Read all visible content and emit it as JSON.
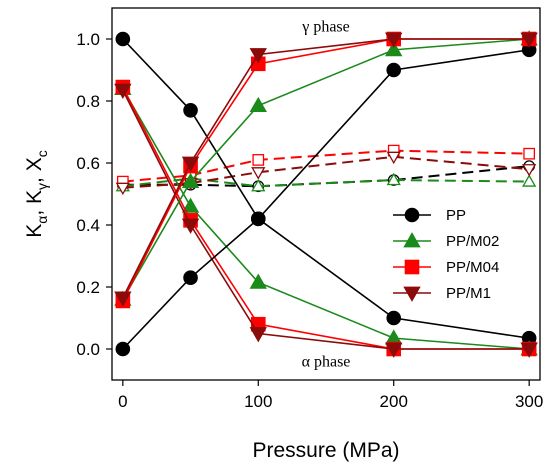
{
  "chart_data": {
    "type": "line",
    "xlabel": "Pressure (MPa)",
    "ylabel": {
      "base": "K",
      "parts": [
        {
          "main": "K",
          "sub": "α"
        },
        {
          "main": "K",
          "sub": "γ"
        },
        {
          "main": "X",
          "sub": "c"
        }
      ],
      "text": "Kα, Kγ, Xc"
    },
    "xlim": [
      -8,
      308
    ],
    "ylim": [
      -0.1,
      1.1
    ],
    "xticks": [
      0,
      100,
      200,
      300
    ],
    "yticks": [
      0.0,
      0.2,
      0.4,
      0.6,
      0.8,
      1.0
    ],
    "xtick_labels": [
      "0",
      "100",
      "200",
      "300"
    ],
    "ytick_labels": [
      "0.0",
      "0.2",
      "0.4",
      "0.6",
      "0.8",
      "1.0"
    ],
    "grid": false,
    "legend_position": "right",
    "annotations": [
      {
        "text": "γ phase",
        "x": 150,
        "y": 1.04
      },
      {
        "text": "α phase",
        "x": 150,
        "y": -0.04
      }
    ],
    "x": [
      0,
      50,
      100,
      200,
      300
    ],
    "series": [
      {
        "name": "PP",
        "color": "#000000",
        "marker": "circle",
        "group": "gamma",
        "dashed": false,
        "filled": true,
        "in_legend": true,
        "values": [
          0.0,
          0.23,
          0.42,
          0.9,
          0.965
        ]
      },
      {
        "name": "PP",
        "color": "#000000",
        "marker": "circle",
        "group": "alpha",
        "dashed": false,
        "filled": true,
        "in_legend": false,
        "values": [
          1.0,
          0.77,
          0.42,
          0.1,
          0.035
        ]
      },
      {
        "name": "PP",
        "color": "#000000",
        "marker": "circle",
        "group": "crystallinity",
        "dashed": true,
        "filled": false,
        "in_legend": false,
        "values": [
          0.53,
          0.53,
          0.525,
          0.545,
          0.59
        ]
      },
      {
        "name": "PP/M02",
        "color": "#1a8a1a",
        "marker": "triangle-up",
        "group": "gamma",
        "dashed": false,
        "filled": true,
        "in_legend": true,
        "values": [
          0.16,
          0.54,
          0.785,
          0.965,
          1.0
        ]
      },
      {
        "name": "PP/M02",
        "color": "#1a8a1a",
        "marker": "triangle-up",
        "group": "alpha",
        "dashed": false,
        "filled": true,
        "in_legend": false,
        "values": [
          0.84,
          0.46,
          0.215,
          0.035,
          0.0
        ]
      },
      {
        "name": "PP/M02",
        "color": "#1a8a1a",
        "marker": "triangle-up",
        "group": "crystallinity",
        "dashed": true,
        "filled": false,
        "in_legend": false,
        "values": [
          0.525,
          0.55,
          0.525,
          0.545,
          0.54
        ]
      },
      {
        "name": "PP/M04",
        "color": "#ff0000",
        "marker": "square",
        "group": "gamma",
        "dashed": false,
        "filled": true,
        "in_legend": true,
        "values": [
          0.155,
          0.59,
          0.92,
          1.0,
          1.0
        ]
      },
      {
        "name": "PP/M04",
        "color": "#ff0000",
        "marker": "square",
        "group": "alpha",
        "dashed": false,
        "filled": true,
        "in_legend": false,
        "values": [
          0.845,
          0.415,
          0.08,
          0.0,
          0.0
        ]
      },
      {
        "name": "PP/M04",
        "color": "#ff0000",
        "marker": "square",
        "group": "crystallinity",
        "dashed": true,
        "filled": false,
        "in_legend": false,
        "values": [
          0.54,
          0.56,
          0.61,
          0.64,
          0.63
        ]
      },
      {
        "name": "PP/M1",
        "color": "#8b0a0a",
        "marker": "triangle-down",
        "group": "gamma",
        "dashed": false,
        "filled": true,
        "in_legend": true,
        "values": [
          0.165,
          0.6,
          0.95,
          1.0,
          1.0
        ]
      },
      {
        "name": "PP/M1",
        "color": "#8b0a0a",
        "marker": "triangle-down",
        "group": "alpha",
        "dashed": false,
        "filled": true,
        "in_legend": false,
        "values": [
          0.835,
          0.4,
          0.05,
          0.0,
          0.0
        ]
      },
      {
        "name": "PP/M1",
        "color": "#8b0a0a",
        "marker": "triangle-down",
        "group": "crystallinity",
        "dashed": true,
        "filled": false,
        "in_legend": false,
        "values": [
          0.52,
          0.535,
          0.57,
          0.62,
          0.58
        ]
      }
    ],
    "legend": [
      {
        "name": "PP",
        "color": "#000000",
        "marker": "circle"
      },
      {
        "name": "PP/M02",
        "color": "#1a8a1a",
        "marker": "triangle-up"
      },
      {
        "name": "PP/M04",
        "color": "#ff0000",
        "marker": "square"
      },
      {
        "name": "PP/M1",
        "color": "#8b0a0a",
        "marker": "triangle-down"
      }
    ]
  }
}
